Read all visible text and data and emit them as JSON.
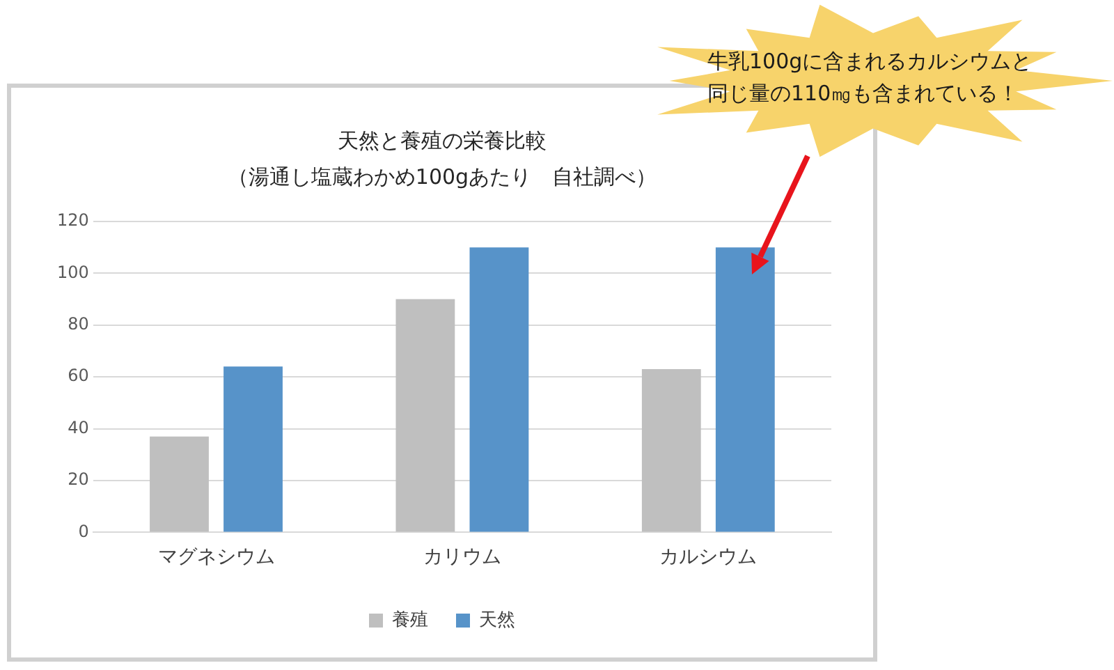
{
  "chart_data": {
    "type": "bar",
    "title": "天然と養殖の栄養比較",
    "subtitle": "（湯通し塩蔵わかめ100gあたり　自社調べ）",
    "categories": [
      "マグネシウム",
      "カリウム",
      "カルシウム"
    ],
    "series": [
      {
        "name": "養殖",
        "color": "#bfbfbf",
        "values": [
          37,
          90,
          63
        ]
      },
      {
        "name": "天然",
        "color": "#5793c9",
        "values": [
          64,
          110,
          110
        ]
      }
    ],
    "ylim": [
      0,
      120
    ],
    "yticks": [
      0,
      20,
      40,
      60,
      80,
      100,
      120
    ],
    "grid": "y",
    "legend": "bottom",
    "annotations": [
      "牛乳100gに含まれるカルシウムと同じ量の110㎎も含まれている！"
    ]
  }
}
